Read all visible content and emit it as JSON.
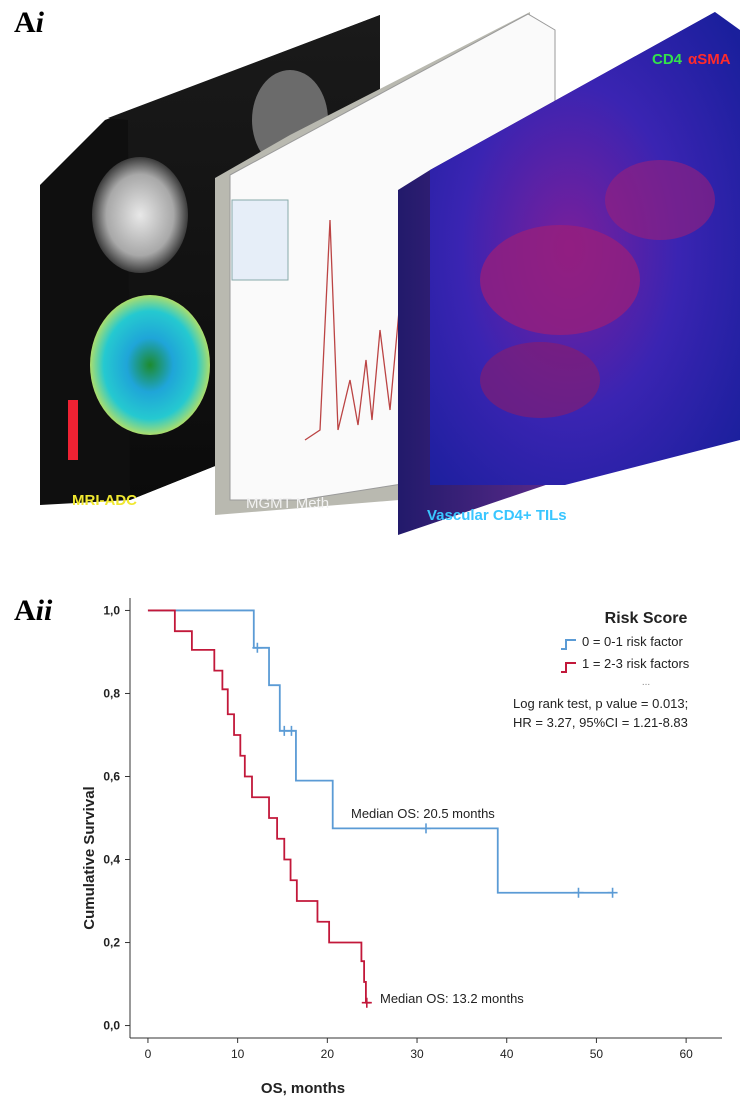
{
  "panel_a": {
    "label_main": "A",
    "label_sub": "i",
    "boxes": {
      "mri": {
        "caption": "MRI-ADC",
        "caption_color": "#f0e830"
      },
      "mgmt": {
        "caption": "MGMT Meth",
        "caption_color": "#f2f2f2"
      },
      "tils": {
        "caption": "Vascular CD4+ TILs",
        "caption_color": "#39c6ff",
        "stain_label_1": "CD4",
        "stain_color_1": "#34e24a",
        "stain_label_2": "αSMA",
        "stain_color_2": "#ff2b2b"
      }
    }
  },
  "panel_b": {
    "label_main": "A",
    "label_sub": "ii",
    "legend_title": "Risk Score",
    "legend_items": [
      "0 = 0-1 risk factor",
      "1 = 2-3 risk factors"
    ],
    "legend_more": "...",
    "stats_line_1": "Log rank test, p value = 0.013;",
    "stats_line_2": "HR = 3.27, 95%CI = 1.21-8.83",
    "annotation_1": "Median OS: 20.5 months",
    "annotation_2": "Median OS: 13.2 months"
  },
  "chart_data": {
    "type": "line",
    "step": true,
    "xlabel": "OS, months",
    "ylabel": "Cumulative Survival",
    "xlim": [
      -2,
      64
    ],
    "ylim": [
      -0.03,
      1.03
    ],
    "x_ticks": [
      0,
      10,
      20,
      30,
      40,
      50,
      60
    ],
    "y_ticks": [
      0.0,
      0.2,
      0.4,
      0.6,
      0.8,
      1.0
    ],
    "y_tick_labels": [
      "0,0",
      "0,2",
      "0,4",
      "0,6",
      "0,8",
      "1,0"
    ],
    "colors": {
      "low": "#5b9bd5",
      "high": "#c2183a"
    },
    "series": [
      {
        "key": "low",
        "name": "0 = 0-1 risk factor",
        "color": "#5b9bd5",
        "steps": [
          [
            0,
            1.0
          ],
          [
            11.8,
            0.91
          ],
          [
            13.5,
            0.82
          ],
          [
            14.7,
            0.71
          ],
          [
            16.5,
            0.59
          ],
          [
            20.6,
            0.475
          ],
          [
            39.0,
            0.32
          ],
          [
            51.8,
            0.32
          ]
        ],
        "censored": [
          [
            12.2,
            0.91
          ],
          [
            15.2,
            0.71
          ],
          [
            16.0,
            0.71
          ],
          [
            31.0,
            0.475
          ],
          [
            48.0,
            0.32
          ],
          [
            51.8,
            0.32
          ]
        ]
      },
      {
        "key": "high",
        "name": "1 = 2-3 risk factors",
        "color": "#c2183a",
        "steps": [
          [
            0,
            1.0
          ],
          [
            3.0,
            0.95
          ],
          [
            4.9,
            0.905
          ],
          [
            7.4,
            0.855
          ],
          [
            8.3,
            0.81
          ],
          [
            8.9,
            0.75
          ],
          [
            9.6,
            0.7
          ],
          [
            10.3,
            0.65
          ],
          [
            10.8,
            0.6
          ],
          [
            11.6,
            0.55
          ],
          [
            13.5,
            0.5
          ],
          [
            14.4,
            0.45
          ],
          [
            15.2,
            0.4
          ],
          [
            15.9,
            0.35
          ],
          [
            16.6,
            0.3
          ],
          [
            18.9,
            0.25
          ],
          [
            20.2,
            0.2
          ],
          [
            23.8,
            0.155
          ],
          [
            24.1,
            0.105
          ],
          [
            24.3,
            0.055
          ],
          [
            24.8,
            0.055
          ]
        ],
        "censored": [
          [
            24.4,
            0.055
          ]
        ]
      }
    ]
  }
}
